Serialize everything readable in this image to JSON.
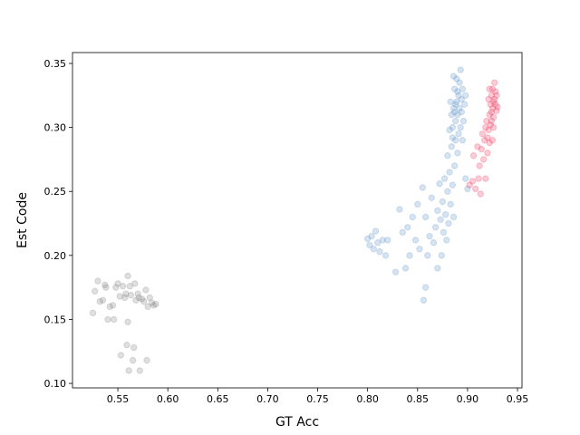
{
  "chart_data": {
    "type": "scatter",
    "xlabel": "GT Acc",
    "ylabel": "Est Code",
    "xlim": [
      0.5046,
      0.9545
    ],
    "ylim": [
      0.0965,
      0.3585
    ],
    "xticks": [
      0.55,
      {
        "value": 0.6,
        "label": "0.60"
      },
      0.65,
      {
        "value": 0.7,
        "label": "0.70"
      },
      0.75,
      {
        "value": 0.8,
        "label": "0.80"
      },
      0.85,
      {
        "value": 0.9,
        "label": "0.90"
      },
      0.95
    ],
    "yticks": [
      {
        "value": 0.1,
        "label": "0.10"
      },
      0.15,
      {
        "value": 0.2,
        "label": "0.20"
      },
      0.25,
      {
        "value": 0.3,
        "label": "0.30"
      },
      0.35
    ],
    "grid": false,
    "alpha": 0.25,
    "series": [
      {
        "color": "#808080",
        "x": [
          0.525,
          0.527,
          0.53,
          0.532,
          0.535,
          0.537,
          0.538,
          0.54,
          0.542,
          0.545,
          0.546,
          0.548,
          0.55,
          0.552,
          0.553,
          0.555,
          0.557,
          0.558,
          0.559,
          0.56,
          0.56,
          0.561,
          0.562,
          0.563,
          0.565,
          0.566,
          0.567,
          0.568,
          0.57,
          0.571,
          0.572,
          0.574,
          0.576,
          0.578,
          0.579,
          0.58,
          0.582,
          0.584,
          0.586,
          0.588
        ],
        "values": [
          0.155,
          0.172,
          0.18,
          0.164,
          0.165,
          0.177,
          0.175,
          0.15,
          0.16,
          0.161,
          0.15,
          0.175,
          0.178,
          0.168,
          0.122,
          0.176,
          0.167,
          0.17,
          0.13,
          0.184,
          0.148,
          0.11,
          0.176,
          0.169,
          0.118,
          0.128,
          0.178,
          0.165,
          0.17,
          0.167,
          0.11,
          0.166,
          0.164,
          0.173,
          0.118,
          0.16,
          0.167,
          0.163,
          0.161,
          0.162
        ]
      },
      {
        "color": "#5b8ec7",
        "x": [
          0.8,
          0.802,
          0.804,
          0.806,
          0.808,
          0.81,
          0.812,
          0.815,
          0.818,
          0.82,
          0.828,
          0.832,
          0.835,
          0.838,
          0.84,
          0.842,
          0.845,
          0.848,
          0.85,
          0.852,
          0.855,
          0.856,
          0.858,
          0.858,
          0.86,
          0.862,
          0.864,
          0.866,
          0.868,
          0.87,
          0.87,
          0.872,
          0.873,
          0.874,
          0.875,
          0.876,
          0.877,
          0.878,
          0.879,
          0.88,
          0.88,
          0.881,
          0.882,
          0.883,
          0.884,
          0.885,
          0.885,
          0.886,
          0.886,
          0.887,
          0.887,
          0.888,
          0.888,
          0.889,
          0.889,
          0.89,
          0.89,
          0.891,
          0.891,
          0.892,
          0.892,
          0.893,
          0.893,
          0.894,
          0.894,
          0.895,
          0.895,
          0.896,
          0.897,
          0.898,
          0.898,
          0.9,
          0.884,
          0.883,
          0.882,
          0.886,
          0.888,
          0.89,
          0.887,
          0.885
        ],
        "values": [
          0.213,
          0.208,
          0.215,
          0.205,
          0.219,
          0.21,
          0.203,
          0.212,
          0.2,
          0.212,
          0.187,
          0.236,
          0.218,
          0.19,
          0.222,
          0.2,
          0.23,
          0.212,
          0.24,
          0.205,
          0.253,
          0.165,
          0.23,
          0.175,
          0.2,
          0.215,
          0.245,
          0.21,
          0.222,
          0.19,
          0.235,
          0.256,
          0.228,
          0.2,
          0.242,
          0.218,
          0.26,
          0.232,
          0.212,
          0.25,
          0.278,
          0.225,
          0.265,
          0.24,
          0.285,
          0.255,
          0.3,
          0.23,
          0.315,
          0.27,
          0.33,
          0.29,
          0.305,
          0.32,
          0.338,
          0.28,
          0.31,
          0.295,
          0.325,
          0.315,
          0.335,
          0.3,
          0.345,
          0.312,
          0.322,
          0.29,
          0.33,
          0.305,
          0.318,
          0.26,
          0.325,
          0.252,
          0.31,
          0.32,
          0.298,
          0.34,
          0.318,
          0.328,
          0.312,
          0.292
        ]
      },
      {
        "color": "#f0345a",
        "x": [
          0.902,
          0.905,
          0.906,
          0.908,
          0.91,
          0.911,
          0.912,
          0.913,
          0.914,
          0.915,
          0.916,
          0.917,
          0.918,
          0.918,
          0.919,
          0.92,
          0.92,
          0.921,
          0.922,
          0.922,
          0.923,
          0.923,
          0.924,
          0.924,
          0.925,
          0.925,
          0.926,
          0.926,
          0.927,
          0.927,
          0.928,
          0.928,
          0.929,
          0.929,
          0.93,
          0.921,
          0.922,
          0.924,
          0.926,
          0.925
        ],
        "values": [
          0.255,
          0.258,
          0.278,
          0.252,
          0.285,
          0.26,
          0.27,
          0.248,
          0.283,
          0.295,
          0.275,
          0.29,
          0.3,
          0.26,
          0.305,
          0.292,
          0.28,
          0.298,
          0.31,
          0.288,
          0.318,
          0.302,
          0.325,
          0.312,
          0.33,
          0.315,
          0.32,
          0.308,
          0.335,
          0.322,
          0.318,
          0.328,
          0.313,
          0.325,
          0.316,
          0.322,
          0.33,
          0.305,
          0.3,
          0.29
        ]
      }
    ]
  }
}
